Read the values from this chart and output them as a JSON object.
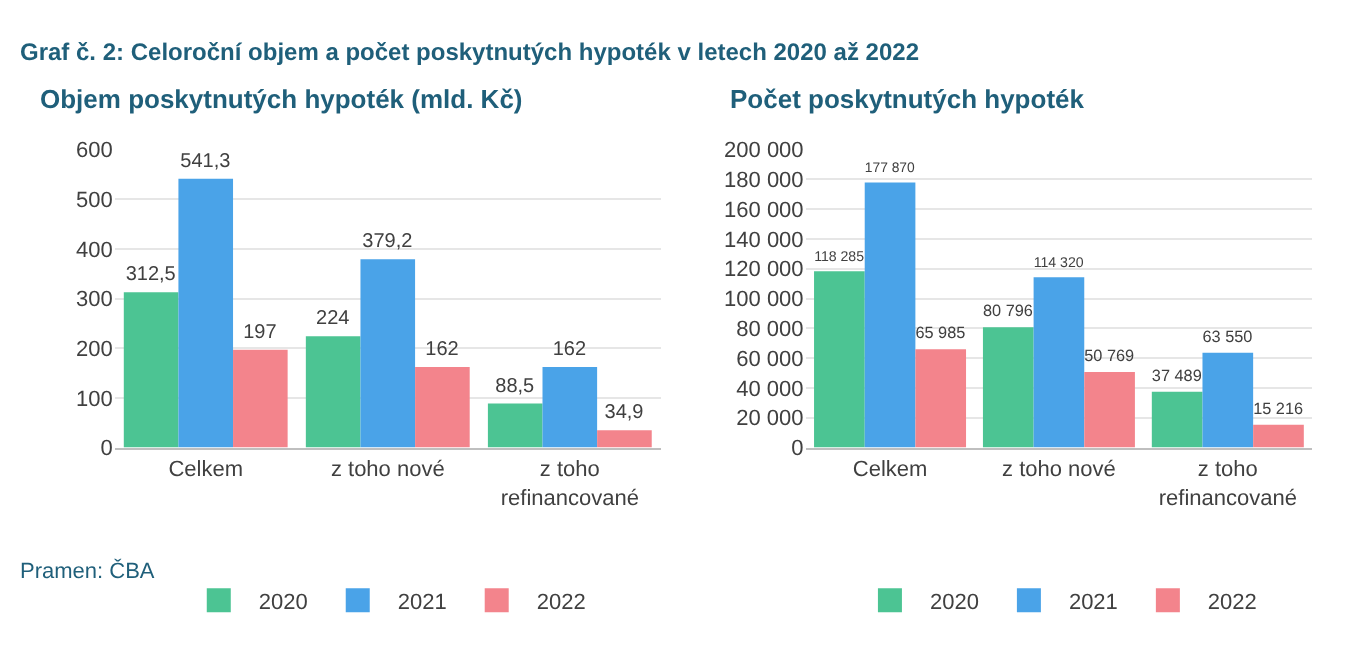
{
  "chart_data": [
    {
      "type": "bar",
      "title": "Objem poskytnutých hypoték (mld. Kč)",
      "annotations": [
        "Graf č. 2: Celoroční objem a počet poskytnutých hypoték v letech 2020 až 2022",
        "Pramen: ČBA"
      ],
      "categories": [
        "Celkem",
        "z toho nové",
        "z toho refinancované"
      ],
      "series": [
        {
          "name": "2020",
          "color": "#4cc493",
          "values": [
            312.5,
            224,
            88.5
          ],
          "value_labels": [
            "312,5",
            "224",
            "88,5"
          ]
        },
        {
          "name": "2021",
          "color": "#4aa3e8",
          "values": [
            541.3,
            379.2,
            162
          ],
          "value_labels": [
            "541,3",
            "379,2",
            "162"
          ]
        },
        {
          "name": "2022",
          "color": "#f3848c",
          "values": [
            197,
            162,
            34.9
          ],
          "value_labels": [
            "197",
            "162",
            "34,9"
          ]
        }
      ],
      "ylim": [
        0,
        600
      ],
      "yticks": [
        0,
        100,
        200,
        300,
        400,
        500,
        600
      ],
      "grid": "y",
      "legend": "bottom"
    },
    {
      "type": "bar",
      "title": "Počet poskytnutých hypoték",
      "categories": [
        "Celkem",
        "z toho nové",
        "z toho refinancované"
      ],
      "series": [
        {
          "name": "2020",
          "color": "#4cc493",
          "values": [
            118285,
            80796,
            37489
          ],
          "value_labels": [
            "118 285",
            "80 796",
            "37 489"
          ]
        },
        {
          "name": "2021",
          "color": "#4aa3e8",
          "values": [
            177870,
            114320,
            63550
          ],
          "value_labels": [
            "177 870",
            "114 320",
            "63 550"
          ]
        },
        {
          "name": "2022",
          "color": "#f3848c",
          "values": [
            65985,
            50769,
            15216
          ],
          "value_labels": [
            "65 985",
            "50 769",
            "15 216"
          ]
        }
      ],
      "ylim": [
        0,
        200000
      ],
      "yticks": [
        {
          "value": 0,
          "label": "0"
        },
        {
          "value": 20000,
          "label": "20 000"
        },
        {
          "value": 40000,
          "label": "40 000"
        },
        {
          "value": 60000,
          "label": "60 000"
        },
        {
          "value": 80000,
          "label": "80 000"
        },
        {
          "value": 100000,
          "label": "100 000"
        },
        {
          "value": 120000,
          "label": "120 000"
        },
        {
          "value": 140000,
          "label": "140 000"
        },
        {
          "value": 160000,
          "label": "160 000"
        },
        {
          "value": 180000,
          "label": "180 000"
        },
        {
          "value": 200000,
          "label": "200 000"
        }
      ],
      "grid": "y",
      "legend": "bottom"
    }
  ]
}
